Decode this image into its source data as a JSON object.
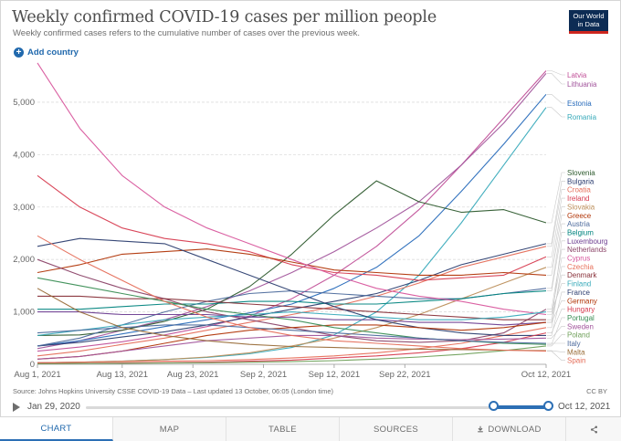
{
  "header": {
    "title": "Weekly confirmed COVID-19 cases per million people",
    "subtitle": "Weekly confirmed cases refers to the cumulative number of cases over the previous week.",
    "logo_line1": "Our World",
    "logo_line2": "in Data"
  },
  "controls": {
    "add_country": "Add country"
  },
  "footer": {
    "source": "Source: Johns Hopkins University CSSE COVID-19 Data – Last updated 13 October, 06:05 (London time)",
    "license": "CC BY"
  },
  "timeline": {
    "start": "Jan 29, 2020",
    "end": "Oct 12, 2021"
  },
  "tabs": [
    "CHART",
    "MAP",
    "TABLE",
    "SOURCES",
    "DOWNLOAD"
  ],
  "colors": {
    "accent": "#2c6fb5",
    "grid": "#dddddd",
    "text": "#4d4d4d"
  },
  "chart_data": {
    "type": "line",
    "title": "Weekly confirmed COVID-19 cases per million people",
    "xlabel": "",
    "ylabel": "",
    "x_range_days": [
      0,
      72
    ],
    "ylim": [
      0,
      5800
    ],
    "yticks": [
      0,
      1000,
      2000,
      3000,
      4000,
      5000
    ],
    "ytick_labels": [
      "0",
      "1,000",
      "2,000",
      "3,000",
      "4,000",
      "5,000"
    ],
    "xticks": [
      {
        "day": 0,
        "label": "Aug 1, 2021"
      },
      {
        "day": 12,
        "label": "Aug 13, 2021"
      },
      {
        "day": 22,
        "label": "Aug 23, 2021"
      },
      {
        "day": 32,
        "label": "Sep 2, 2021"
      },
      {
        "day": 42,
        "label": "Sep 12, 2021"
      },
      {
        "day": 52,
        "label": "Sep 22, 2021"
      },
      {
        "day": 72,
        "label": "Oct 12, 2021"
      }
    ],
    "x": [
      0,
      6,
      12,
      18,
      24,
      30,
      36,
      42,
      48,
      54,
      60,
      66,
      72
    ],
    "series": [
      {
        "name": "Latvia",
        "color": "#c15098",
        "values": [
          250,
          330,
          430,
          560,
          720,
          920,
          1250,
          1700,
          2250,
          2950,
          3800,
          4700,
          5600
        ]
      },
      {
        "name": "Lithuania",
        "color": "#a2559c",
        "values": [
          300,
          450,
          650,
          850,
          1100,
          1400,
          1750,
          2150,
          2600,
          3100,
          3800,
          4600,
          5550
        ]
      },
      {
        "name": "Estonia",
        "color": "#286bbb",
        "values": [
          350,
          450,
          580,
          720,
          850,
          980,
          1150,
          1450,
          1850,
          2450,
          3300,
          4200,
          5150
        ]
      },
      {
        "name": "Romania",
        "color": "#38aaba",
        "values": [
          30,
          40,
          60,
          90,
          130,
          200,
          320,
          560,
          1000,
          1700,
          2700,
          3800,
          4900
        ]
      },
      {
        "name": "Slovenia",
        "color": "#2d5a2d",
        "values": [
          550,
          560,
          650,
          820,
          1050,
          1480,
          2100,
          2850,
          3500,
          3100,
          2900,
          2950,
          2700
        ]
      },
      {
        "name": "Bulgaria",
        "color": "#2c3e70",
        "values": [
          350,
          420,
          520,
          620,
          750,
          900,
          1050,
          1200,
          1350,
          1600,
          1900,
          2100,
          2300
        ]
      },
      {
        "name": "Croatia",
        "color": "#e56e5a",
        "values": [
          160,
          250,
          380,
          500,
          650,
          800,
          950,
          1100,
          1300,
          1550,
          1850,
          2050,
          2250
        ]
      },
      {
        "name": "Ireland",
        "color": "#d73c50",
        "values": [
          3600,
          3000,
          2600,
          2400,
          2300,
          2150,
          1900,
          1750,
          1700,
          1600,
          1650,
          1700,
          2050
        ]
      },
      {
        "name": "Slovakia",
        "color": "#bc8e5a",
        "values": [
          30,
          40,
          60,
          90,
          140,
          220,
          350,
          500,
          700,
          950,
          1250,
          1550,
          1850
        ]
      },
      {
        "name": "Greece",
        "color": "#b13507",
        "values": [
          1750,
          1900,
          2100,
          2150,
          2200,
          2100,
          1950,
          1800,
          1750,
          1700,
          1700,
          1750,
          1700
        ]
      },
      {
        "name": "Austria",
        "color": "#4c6a9c",
        "values": [
          350,
          500,
          750,
          1000,
          1200,
          1350,
          1400,
          1350,
          1300,
          1250,
          1250,
          1350,
          1450
        ]
      },
      {
        "name": "Belgium",
        "color": "#00847e",
        "values": [
          1050,
          1050,
          1100,
          1150,
          1150,
          1200,
          1200,
          1150,
          1150,
          1200,
          1250,
          1350,
          1400
        ]
      },
      {
        "name": "Luxembourg",
        "color": "#6d3e91",
        "values": [
          1000,
          1000,
          950,
          950,
          950,
          900,
          900,
          850,
          850,
          800,
          800,
          750,
          800
        ]
      },
      {
        "name": "Netherlands",
        "color": "#8c4569",
        "values": [
          2000,
          1700,
          1450,
          1250,
          1000,
          850,
          700,
          550,
          450,
          420,
          450,
          600,
          1050
        ]
      },
      {
        "name": "Cyprus",
        "color": "#d8579d",
        "values": [
          5750,
          4500,
          3600,
          3000,
          2600,
          2300,
          2000,
          1700,
          1450,
          1300,
          1200,
          1050,
          950
        ]
      },
      {
        "name": "Czechia",
        "color": "#e76f5a",
        "values": [
          30,
          40,
          50,
          60,
          70,
          90,
          120,
          160,
          220,
          300,
          400,
          550,
          700
        ]
      },
      {
        "name": "Denmark",
        "color": "#883039",
        "values": [
          1300,
          1300,
          1250,
          1250,
          1200,
          1150,
          1100,
          1050,
          1000,
          950,
          900,
          850,
          850
        ]
      },
      {
        "name": "Finland",
        "color": "#38aaba",
        "values": [
          550,
          650,
          750,
          850,
          900,
          950,
          1000,
          950,
          900,
          850,
          850,
          900,
          1000
        ]
      },
      {
        "name": "France",
        "color": "#2c3e70",
        "values": [
          2250,
          2400,
          2350,
          2300,
          2000,
          1700,
          1400,
          1100,
          850,
          700,
          600,
          550,
          550
        ]
      },
      {
        "name": "Germany",
        "color": "#b13507",
        "values": [
          100,
          150,
          250,
          400,
          550,
          650,
          700,
          750,
          750,
          700,
          650,
          700,
          800
        ]
      },
      {
        "name": "Hungary",
        "color": "#d73c50",
        "values": [
          15,
          20,
          25,
          30,
          40,
          60,
          80,
          120,
          160,
          220,
          300,
          420,
          600
        ]
      },
      {
        "name": "Portugal",
        "color": "#3b8e55",
        "values": [
          1650,
          1500,
          1350,
          1200,
          1050,
          950,
          850,
          700,
          600,
          500,
          450,
          400,
          380
        ]
      },
      {
        "name": "Sweden",
        "color": "#a2559c",
        "values": [
          100,
          150,
          250,
          350,
          450,
          500,
          550,
          550,
          500,
          480,
          470,
          480,
          500
        ]
      },
      {
        "name": "Poland",
        "color": "#6fa05a",
        "values": [
          10,
          15,
          20,
          25,
          30,
          40,
          50,
          70,
          100,
          140,
          190,
          260,
          350
        ]
      },
      {
        "name": "Italy",
        "color": "#4c6a9c",
        "values": [
          600,
          650,
          700,
          750,
          750,
          700,
          650,
          600,
          550,
          500,
          450,
          420,
          400
        ]
      },
      {
        "name": "Malta",
        "color": "#996d39",
        "values": [
          1450,
          1000,
          700,
          550,
          450,
          380,
          340,
          320,
          300,
          290,
          280,
          270,
          260
        ]
      },
      {
        "name": "Spain",
        "color": "#e56e5a",
        "values": [
          2450,
          2000,
          1600,
          1200,
          900,
          700,
          550,
          450,
          400,
          350,
          300,
          270,
          250
        ]
      }
    ]
  }
}
